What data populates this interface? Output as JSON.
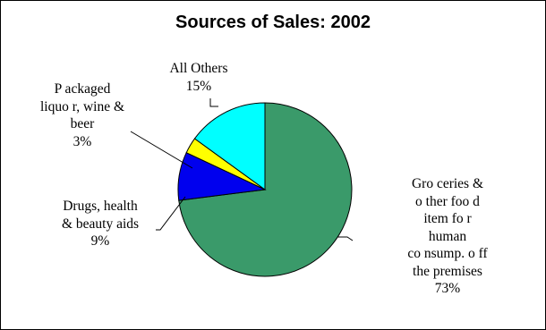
{
  "chart_data": {
    "type": "pie",
    "title": "Sources of Sales: 2002",
    "start_angle_deg": 0,
    "direction": "clockwise",
    "legend": "none",
    "slices": [
      {
        "label_lines": [
          "Gro ceries &",
          "o ther foo d",
          "item fo r",
          "human",
          "co nsump. o ff",
          "the premises"
        ],
        "value": 73,
        "value_label": "73%",
        "color": "#3a9a6a"
      },
      {
        "label_lines": [
          "Drugs, health",
          "& beauty aids"
        ],
        "value": 9,
        "value_label": "9%",
        "color": "#0000ee"
      },
      {
        "label_lines": [
          "P ackaged",
          "liquo r, wine &",
          "beer"
        ],
        "value": 3,
        "value_label": "3%",
        "color": "#ffff00"
      },
      {
        "label_lines": [
          "All Others"
        ],
        "value": 15,
        "value_label": "15%",
        "color": "#00ffff"
      }
    ]
  }
}
